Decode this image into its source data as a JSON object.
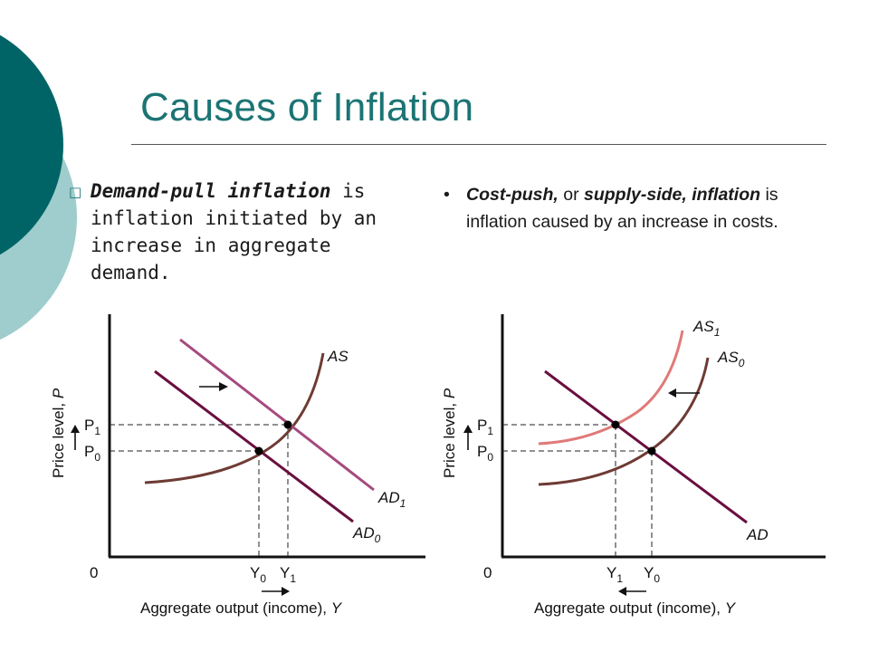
{
  "slide": {
    "title": "Causes of Inflation",
    "colors": {
      "title": "#1c7474",
      "circle_dark": "#006466",
      "circle_light": "#9fcccc"
    }
  },
  "left_bullet": {
    "marker": "□",
    "term": "Demand-pull inflation",
    "rest": " is inflation initiated by an increase in aggregate demand."
  },
  "right_bullet": {
    "marker": "•",
    "term1": "Cost-push,",
    "mid": " or ",
    "term2": "supply-side, inflation",
    "rest": " is inflation caused by an increase in costs."
  },
  "chart_data": [
    {
      "type": "line",
      "title": "",
      "xlabel": "Aggregate output (income), ",
      "xlabel_var": "Y",
      "ylabel": "Price level, ",
      "ylabel_var": "P",
      "origin_label": "0",
      "colors": {
        "AS": "#6e3b34",
        "AD0": "#6a0f3f",
        "AD1": "#a64a7f"
      },
      "curves": [
        {
          "name": "AS",
          "sub": "",
          "kind": "supply"
        },
        {
          "name": "AD",
          "sub": "0",
          "kind": "demand"
        },
        {
          "name": "AD",
          "sub": "1",
          "kind": "demand"
        }
      ],
      "equilibria": [
        {
          "p": "P",
          "p_sub": "0",
          "y": "Y",
          "y_sub": "0"
        },
        {
          "p": "P",
          "p_sub": "1",
          "y": "Y",
          "y_sub": "1"
        }
      ],
      "shift": "AD shifts right"
    },
    {
      "type": "line",
      "title": "",
      "xlabel": "Aggregate output (income), ",
      "xlabel_var": "Y",
      "ylabel": "Price level, ",
      "ylabel_var": "P",
      "origin_label": "0",
      "colors": {
        "AS0": "#6e3b34",
        "AS1": "#e07a78",
        "AD": "#6a0f3f"
      },
      "curves": [
        {
          "name": "AS",
          "sub": "1",
          "kind": "supply"
        },
        {
          "name": "AS",
          "sub": "0",
          "kind": "supply"
        },
        {
          "name": "AD",
          "sub": "",
          "kind": "demand"
        }
      ],
      "equilibria": [
        {
          "p": "P",
          "p_sub": "0",
          "y": "Y",
          "y_sub": "0"
        },
        {
          "p": "P",
          "p_sub": "1",
          "y": "Y",
          "y_sub": "1"
        }
      ],
      "shift": "AS shifts left"
    }
  ]
}
